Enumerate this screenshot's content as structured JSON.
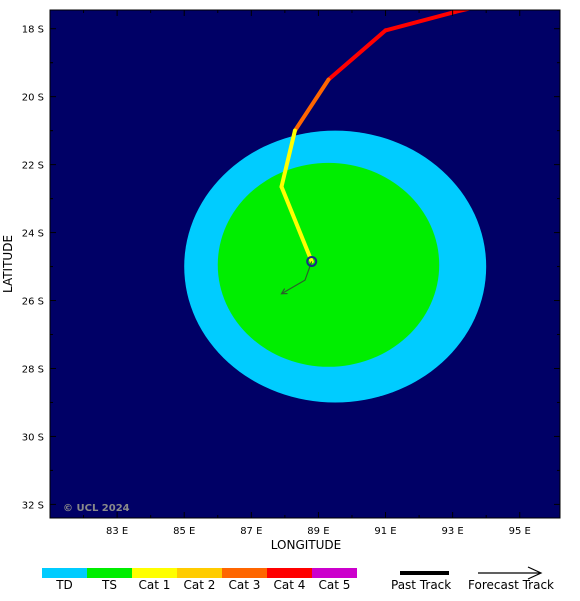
{
  "map": {
    "x_axis_title": "LONGITUDE",
    "y_axis_title": "LATITUDE",
    "copyright": "© UCL 2024",
    "lon_ticks": [
      "83 E",
      "85 E",
      "87 E",
      "89 E",
      "91 E",
      "93 E",
      "95 E"
    ],
    "lat_ticks": [
      "18 S",
      "20 S",
      "22 S",
      "24 S",
      "26 S",
      "28 S",
      "30 S",
      "32 S"
    ],
    "lon_range": [
      81.0,
      96.2
    ],
    "lat_range": [
      -17.45,
      -32.4
    ],
    "colors": {
      "ocean": "#000066",
      "td": "#00ccff",
      "ts": "#00ee00",
      "cat1": "#ffff00",
      "cat2": "#ffcc00",
      "cat3": "#ff6600",
      "cat4": "#ff0000",
      "cat5": "#cc00cc"
    },
    "wind_fields": [
      {
        "category": "TD",
        "center": [
          89.5,
          -25.0
        ],
        "radius_lon": 4.5,
        "radius_lat": 4.0
      },
      {
        "category": "TS",
        "center": [
          89.3,
          -24.95
        ],
        "radius_lon": 3.3,
        "radius_lat": 3.0
      }
    ],
    "past_track": [
      {
        "lon": 94.6,
        "lat": -17.15,
        "category": "Cat 1"
      },
      {
        "lon": 93.1,
        "lat": -17.5,
        "category": "Cat 4"
      },
      {
        "lon": 91.0,
        "lat": -18.05,
        "category": "Cat 4"
      },
      {
        "lon": 89.3,
        "lat": -19.5,
        "category": "Cat 4"
      },
      {
        "lon": 88.3,
        "lat": -21.0,
        "category": "Cat 3"
      },
      {
        "lon": 87.9,
        "lat": -22.65,
        "category": "Cat 1"
      },
      {
        "lon": 88.8,
        "lat": -24.85,
        "category": "Cat 1"
      }
    ],
    "current_position": {
      "lon": 88.8,
      "lat": -24.85
    },
    "forecast_track": [
      {
        "lon": 88.8,
        "lat": -24.85
      },
      {
        "lon": 88.6,
        "lat": -25.4
      },
      {
        "lon": 87.9,
        "lat": -25.8
      }
    ]
  },
  "legend": {
    "categories": [
      {
        "label": "TD",
        "color": "#00ccff"
      },
      {
        "label": "TS",
        "color": "#00ee00"
      },
      {
        "label": "Cat 1",
        "color": "#ffff00"
      },
      {
        "label": "Cat 2",
        "color": "#ffcc00"
      },
      {
        "label": "Cat 3",
        "color": "#ff6600"
      },
      {
        "label": "Cat 4",
        "color": "#ff0000"
      },
      {
        "label": "Cat 5",
        "color": "#cc00cc"
      }
    ],
    "past_track_label": "Past Track",
    "forecast_track_label": "Forecast Track"
  }
}
